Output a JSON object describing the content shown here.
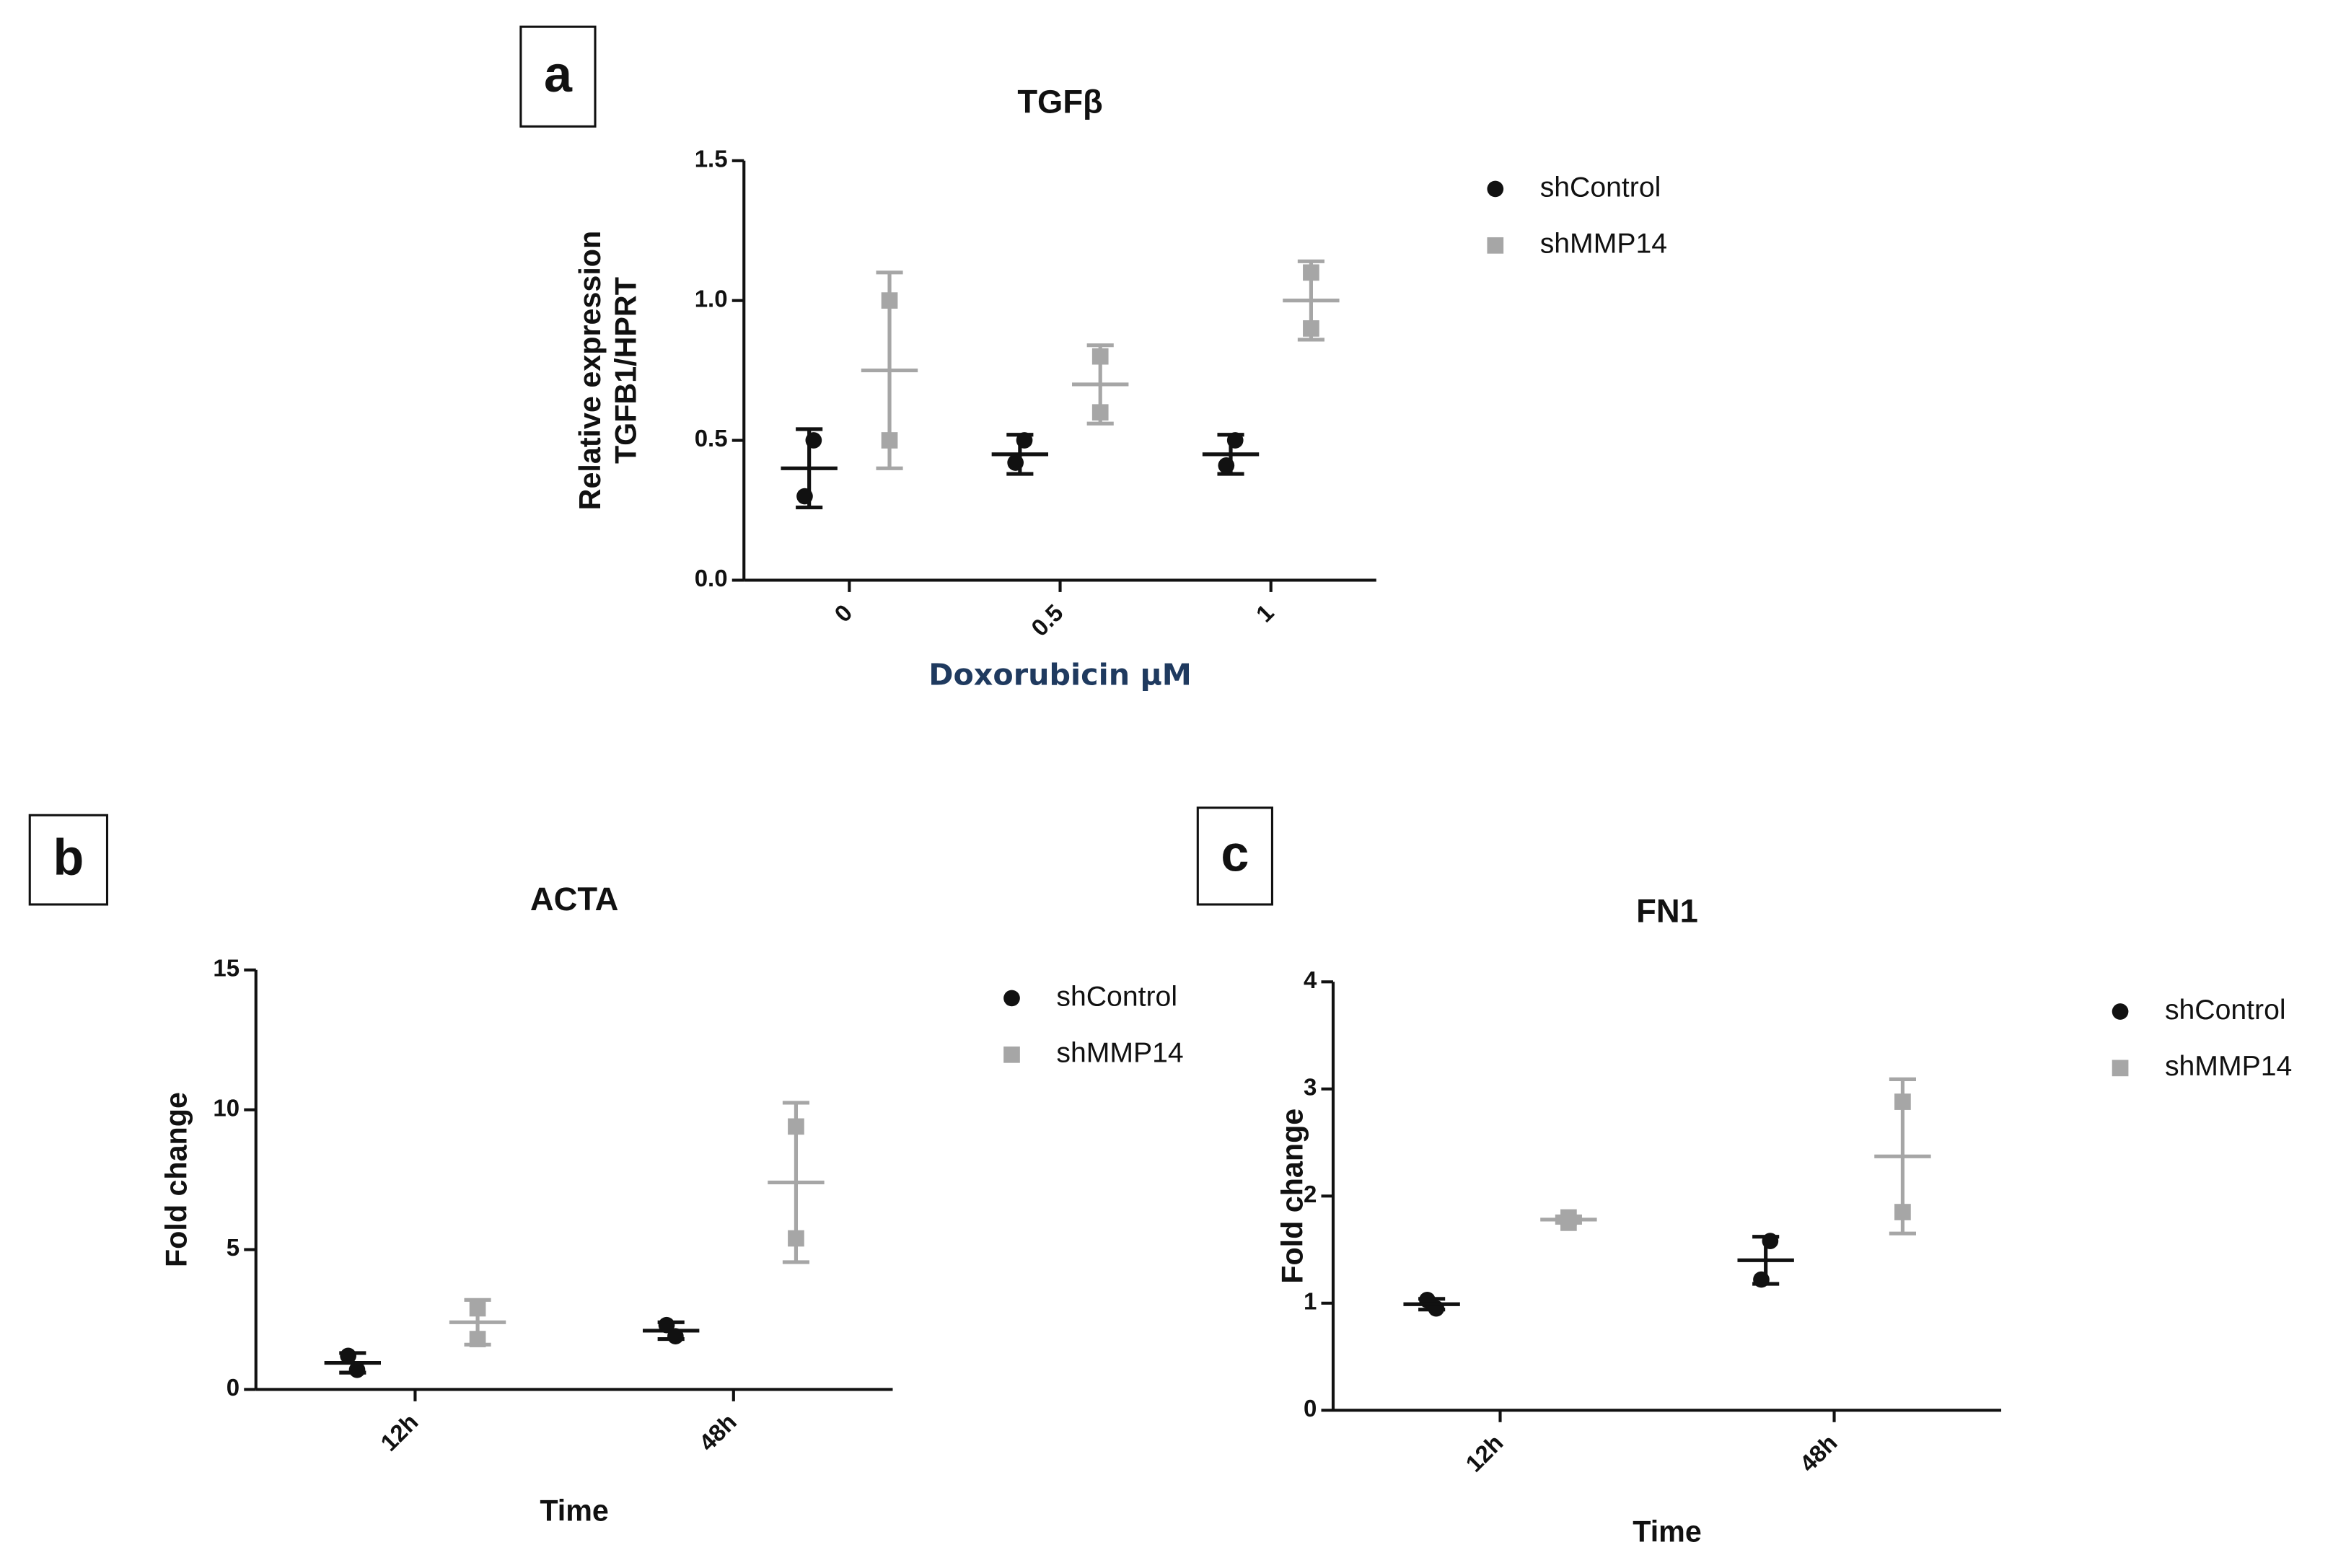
{
  "chart_data": [
    {
      "type": "dotplot",
      "panel": "a",
      "title": "TGFβ",
      "ylabel": [
        "Relative expression",
        "TGFB1/HPRT"
      ],
      "xlabel": "Doxorubicin µM",
      "categories": [
        "0",
        "0.5",
        "1"
      ],
      "ylim": [
        0,
        1.5
      ],
      "yticks": [
        {
          "value": 0,
          "label": "0.0"
        },
        {
          "value": 0.5,
          "label": "0.5"
        },
        {
          "value": 1,
          "label": "1.0"
        },
        {
          "value": 1.5,
          "label": "1.5"
        }
      ],
      "series": [
        {
          "name": "shControl",
          "color": "#111111",
          "marker": "circle",
          "values": [
            0.4,
            0.45,
            0.45
          ],
          "errors": [
            0.14,
            0.07,
            0.07
          ],
          "points": [
            [
              0.5,
              0.3
            ],
            [
              0.5,
              0.42
            ],
            [
              0.5,
              0.41
            ]
          ]
        },
        {
          "name": "shMMP14",
          "color": "#a6a6a6",
          "marker": "square",
          "values": [
            0.75,
            0.7,
            1.0
          ],
          "errors": [
            0.35,
            0.14,
            0.14
          ],
          "points": [
            [
              1.0,
              0.5
            ],
            [
              0.8,
              0.6
            ],
            [
              1.1,
              0.9
            ]
          ]
        }
      ]
    },
    {
      "type": "dotplot",
      "panel": "b",
      "title": "ACTA",
      "ylabel": [
        "Fold change"
      ],
      "xlabel": "Time",
      "categories": [
        "12h",
        "48h"
      ],
      "ylim": [
        0,
        15
      ],
      "yticks": [
        0,
        5,
        10,
        15
      ],
      "series": [
        {
          "name": "shControl",
          "color": "#111111",
          "marker": "circle",
          "values": [
            0.95,
            2.1
          ],
          "errors": [
            0.35,
            0.3
          ],
          "points": [
            [
              0.7,
              1.2
            ],
            [
              1.9,
              2.3
            ]
          ]
        },
        {
          "name": "shMMP14",
          "color": "#a6a6a6",
          "marker": "square",
          "values": [
            2.4,
            7.4
          ],
          "errors": [
            0.8,
            2.85
          ],
          "points": [
            [
              2.9,
              1.8
            ],
            [
              9.4,
              5.4
            ]
          ]
        }
      ]
    },
    {
      "type": "dotplot",
      "panel": "c",
      "title": "FN1",
      "ylabel": [
        "Fold change"
      ],
      "xlabel": "Time",
      "categories": [
        "12h",
        "48h"
      ],
      "ylim": [
        0,
        4
      ],
      "yticks": [
        0,
        1,
        2,
        3,
        4
      ],
      "series": [
        {
          "name": "shControl",
          "color": "#111111",
          "marker": "circle",
          "values": [
            0.99,
            1.4
          ],
          "errors": [
            0.05,
            0.22
          ],
          "points": [
            [
              0.95,
              1.03
            ],
            [
              1.58,
              1.22
            ]
          ]
        },
        {
          "name": "shMMP14",
          "color": "#a6a6a6",
          "marker": "square",
          "values": [
            1.78,
            2.37
          ],
          "errors": [
            0.03,
            0.72
          ],
          "points": [
            [
              1.75,
              1.8
            ],
            [
              2.88,
              1.85
            ]
          ]
        }
      ]
    }
  ]
}
